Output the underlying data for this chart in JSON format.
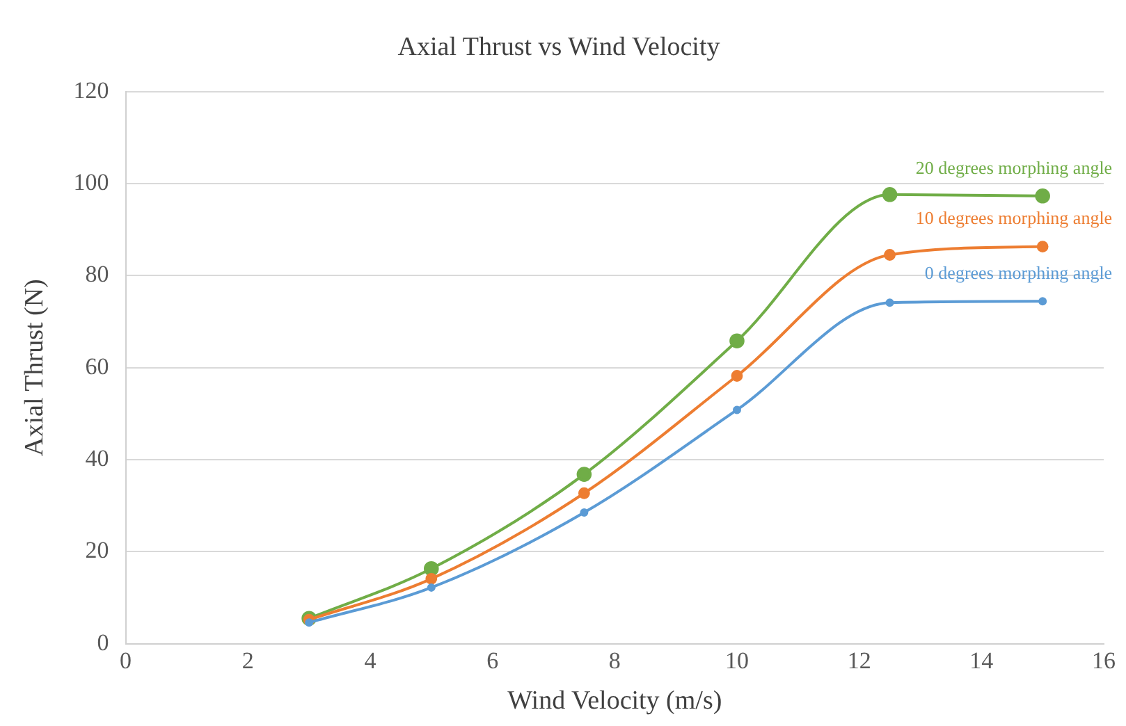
{
  "chart_data": {
    "type": "line",
    "title": "Axial Thrust vs Wind Velocity",
    "xlabel": "Wind Velocity (m/s)",
    "ylabel": "Axial Thrust (N)",
    "x": [
      3,
      5,
      7.5,
      10,
      12.5,
      15
    ],
    "series": [
      {
        "name": "0 degrees morphing angle",
        "color": "#5b9bd5",
        "values": [
          4.6,
          12.2,
          28.5,
          50.8,
          74.1,
          74.4
        ]
      },
      {
        "name": "10 degrees morphing angle",
        "color": "#ed7d31",
        "values": [
          5.2,
          14.1,
          32.7,
          58.2,
          84.5,
          86.3
        ]
      },
      {
        "name": "20 degrees morphing angle",
        "color": "#70ad47",
        "values": [
          5.5,
          16.3,
          36.8,
          65.8,
          97.6,
          97.3
        ]
      }
    ],
    "xlim": [
      0,
      16
    ],
    "xticks": [
      0,
      2,
      4,
      6,
      8,
      10,
      12,
      14,
      16
    ],
    "ylim": [
      0,
      120
    ],
    "yticks": [
      0,
      20,
      40,
      60,
      80,
      100,
      120
    ],
    "grid": "y",
    "legend": false,
    "marker": "circle"
  }
}
